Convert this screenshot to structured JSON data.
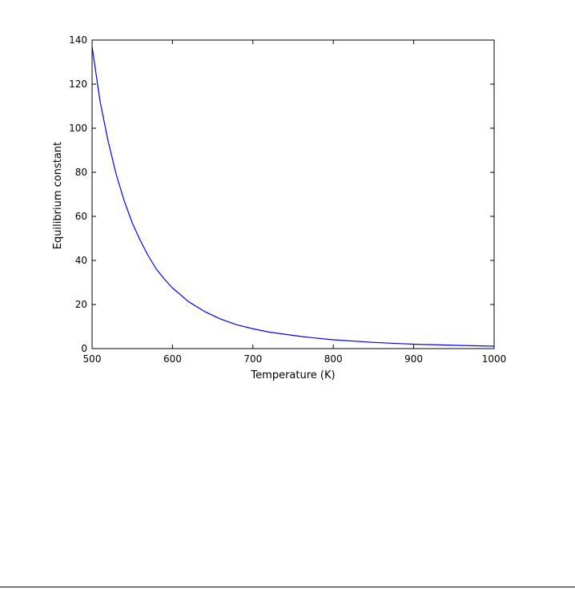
{
  "chart_data": {
    "type": "line",
    "title": "",
    "xlabel": "Temperature (K)",
    "ylabel": "Equilibrium constant",
    "xlim": [
      500,
      1000
    ],
    "ylim": [
      0,
      140
    ],
    "xticks": [
      500,
      600,
      700,
      800,
      900,
      1000
    ],
    "yticks": [
      0,
      20,
      40,
      60,
      80,
      100,
      120,
      140
    ],
    "grid": false,
    "series": [
      {
        "color": "#0000ff",
        "x": [
          500,
          510,
          520,
          530,
          540,
          550,
          560,
          570,
          580,
          590,
          600,
          620,
          640,
          660,
          680,
          700,
          720,
          740,
          760,
          780,
          800,
          850,
          900,
          950,
          1000
        ],
        "y": [
          137,
          112,
          94,
          79,
          67,
          57,
          49,
          42,
          36,
          31.5,
          27.5,
          21.3,
          16.8,
          13.4,
          10.8,
          9.0,
          7.5,
          6.5,
          5.5,
          4.7,
          4.0,
          2.8,
          2.0,
          1.5,
          1.1
        ]
      }
    ]
  }
}
